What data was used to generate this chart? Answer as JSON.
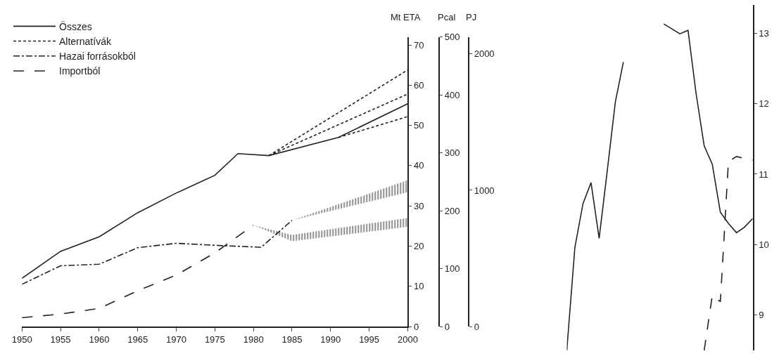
{
  "chart_data": [
    {
      "type": "line",
      "ylabel": "Mt ETA",
      "y2label": "Pcal",
      "y3label": "PJ",
      "legend": "top left",
      "xlim": [
        1950,
        2000
      ],
      "xticks": [
        1950,
        1955,
        1960,
        1965,
        1970,
        1975,
        1980,
        1985,
        1990,
        1995,
        2000
      ],
      "ylim": [
        0,
        72
      ],
      "yticks": [
        0,
        10,
        20,
        30,
        40,
        50,
        60,
        70
      ],
      "y2lim": [
        0,
        500
      ],
      "y2ticks": [
        0,
        100,
        200,
        300,
        400,
        500
      ],
      "y3lim": [
        0,
        2125
      ],
      "y3ticks": [
        0,
        1000,
        2000
      ],
      "series": [
        {
          "name": "Összes",
          "color": "#222222",
          "line_style": "solid",
          "x": [
            1950,
            1955,
            1960,
            1965,
            1970,
            1975,
            1978,
            1982,
            1991,
            2000
          ],
          "values": [
            12.0,
            18.7,
            22.3,
            28.3,
            33.2,
            37.6,
            43.0,
            42.5,
            47.0,
            55.4
          ]
        },
        {
          "name": "Alternatívák",
          "color": "#222222",
          "line_style": "dashed",
          "x": [
            1982,
            2000
          ],
          "values": [
            42.5,
            63.8
          ]
        },
        {
          "color": "#222222",
          "line_style": "dashed",
          "x": [
            1982,
            2000
          ],
          "values": [
            42.5,
            57.8
          ]
        },
        {
          "color": "#222222",
          "line_style": "dashed",
          "x": [
            1991,
            2000
          ],
          "values": [
            47.0,
            52.2
          ]
        },
        {
          "name": "Hazai forrásokból",
          "color": "#222222",
          "line_style": "dashdot",
          "x": [
            1950,
            1955,
            1960,
            1965,
            1970,
            1975,
            1981,
            1985,
            2000
          ],
          "values": [
            10.5,
            15.1,
            15.5,
            19.6,
            20.7,
            20.2,
            19.7,
            26.4,
            null
          ],
          "lower": [
            null,
            null,
            null,
            null,
            null,
            null,
            null,
            26.4,
            33.4
          ],
          "upper": [
            null,
            null,
            null,
            null,
            null,
            null,
            null,
            26.4,
            36.4
          ]
        },
        {
          "name": "Importból",
          "color": "#222222",
          "line_style": "longdash",
          "x": [
            1950,
            1955,
            1960,
            1965,
            1970,
            1975,
            1980,
            1985,
            2000
          ],
          "values": [
            2.2,
            3.1,
            4.5,
            8.9,
            12.8,
            18.3,
            25.2,
            null,
            null
          ],
          "lower": [
            null,
            null,
            null,
            null,
            null,
            null,
            25.2,
            21.2,
            24.8
          ],
          "upper": [
            null,
            null,
            null,
            null,
            null,
            null,
            25.2,
            22.8,
            27.0
          ]
        }
      ]
    },
    {
      "type": "line",
      "tick_labels": "y",
      "ylim": [
        8.5,
        13.4
      ],
      "yticks": [
        9,
        10,
        11,
        12,
        13
      ],
      "categories": [
        null,
        null,
        null,
        null,
        null,
        null,
        null,
        null,
        null,
        null,
        null,
        null,
        null,
        null,
        null,
        null,
        null,
        null,
        null,
        null,
        null,
        null,
        null,
        null
      ],
      "series": [
        {
          "color": "#222222",
          "line_style": "solid",
          "values": [
            8.5,
            9.96,
            10.58,
            10.88,
            10.09,
            11.04,
            12.02,
            12.59,
            null,
            null,
            null,
            null,
            null,
            null,
            null,
            null,
            null,
            null,
            null,
            null,
            null,
            null,
            null,
            null
          ]
        },
        {
          "color": "#222222",
          "line_style": "solid",
          "values": [
            null,
            null,
            null,
            null,
            null,
            null,
            null,
            null,
            null,
            null,
            null,
            null,
            13.13,
            13.06,
            12.99,
            13.04,
            12.14,
            11.4,
            11.14,
            10.46,
            10.3,
            10.17,
            10.25,
            10.37
          ]
        },
        {
          "color": "#222222",
          "line_style": "longdash",
          "values": [
            null,
            null,
            null,
            null,
            null,
            null,
            null,
            null,
            null,
            null,
            null,
            null,
            null,
            null,
            null,
            null,
            null,
            8.5,
            9.28,
            9.19,
            11.18,
            11.25,
            11.22,
            11.2
          ]
        }
      ]
    }
  ]
}
